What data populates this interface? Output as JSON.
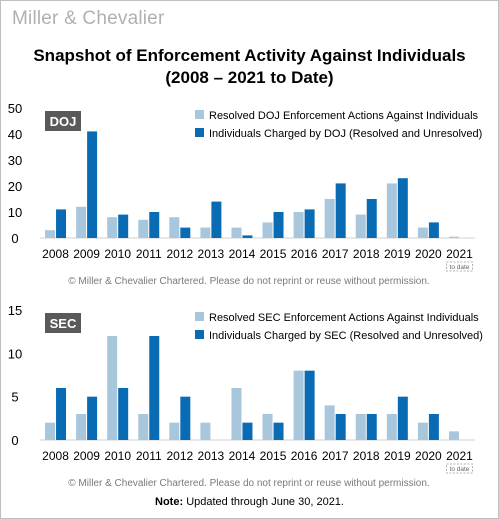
{
  "brand": "Miller & Chevalier",
  "title_line1": "Snapshot of Enforcement Activity Against Individuals",
  "title_line2": "(2008 – 2021 to Date)",
  "copyright": "© Miller & Chevalier Chartered. Please do not reprint or reuse without permission.",
  "note_label": "Note:",
  "note_text": "Updated through June 30, 2021.",
  "colors": {
    "resolved": "#a9c7dc",
    "charged": "#0a6bb5",
    "badge": "#595959"
  },
  "chart_data": [
    {
      "type": "bar",
      "badge": "DOJ",
      "categories": [
        "2008",
        "2009",
        "2010",
        "2011",
        "2012",
        "2013",
        "2014",
        "2015",
        "2016",
        "2017",
        "2018",
        "2019",
        "2020",
        "2021"
      ],
      "category_note": "to date",
      "ylim": [
        0,
        50
      ],
      "yticks": [
        0,
        10,
        20,
        30,
        40,
        50
      ],
      "legend_position": "top-right",
      "series": [
        {
          "name": "Resolved DOJ Enforcement Actions Against Individuals",
          "values": [
            3,
            12,
            8,
            7,
            8,
            4,
            4,
            6,
            10,
            15,
            9,
            21,
            4,
            0.5
          ]
        },
        {
          "name": "Individuals Charged by DOJ (Resolved and Unresolved)",
          "values": [
            11,
            41,
            9,
            10,
            4,
            14,
            1,
            10,
            11,
            21,
            15,
            23,
            6,
            0
          ]
        }
      ]
    },
    {
      "type": "bar",
      "badge": "SEC",
      "categories": [
        "2008",
        "2009",
        "2010",
        "2011",
        "2012",
        "2013",
        "2014",
        "2015",
        "2016",
        "2017",
        "2018",
        "2019",
        "2020",
        "2021"
      ],
      "category_note": "to date",
      "ylim": [
        0,
        15
      ],
      "yticks": [
        0,
        5,
        10,
        15
      ],
      "legend_position": "top-right",
      "series": [
        {
          "name": "Resolved SEC Enforcement Actions Against Individuals",
          "values": [
            2,
            3,
            12,
            3,
            2,
            2,
            6,
            3,
            8,
            4,
            3,
            3,
            2,
            1
          ]
        },
        {
          "name": "Individuals Charged by SEC (Resolved and Unresolved)",
          "values": [
            6,
            5,
            6,
            12,
            5,
            0,
            2,
            2,
            8,
            3,
            3,
            5,
            3,
            0
          ]
        }
      ]
    }
  ]
}
